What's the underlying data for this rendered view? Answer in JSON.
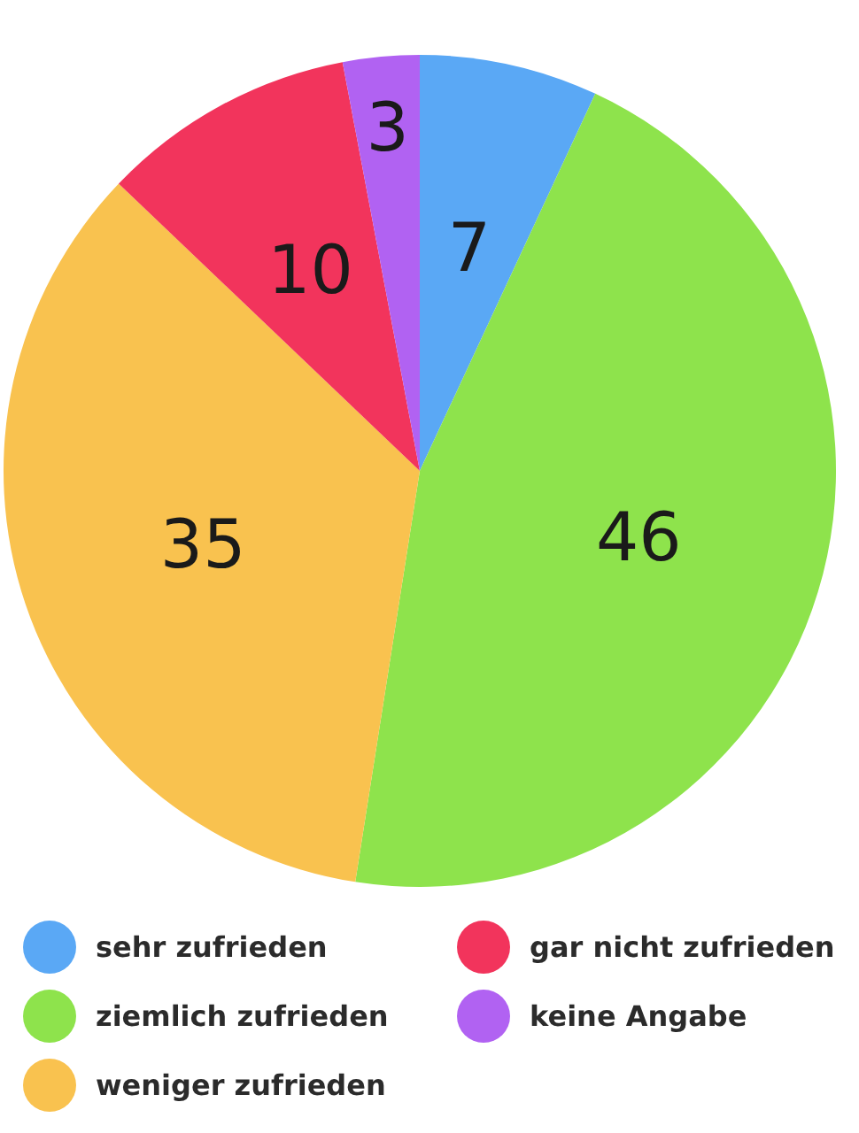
{
  "chart_data": {
    "type": "pie",
    "categories": [
      "sehr zufrieden",
      "ziemlich zufrieden",
      "weniger zufrieden",
      "gar nicht zufrieden",
      "keine Angabe"
    ],
    "values": [
      7,
      46,
      35,
      10,
      3
    ],
    "colors": [
      "#5aa8f5",
      "#8ee34c",
      "#f9c24f",
      "#f2345c",
      "#b162f2"
    ],
    "data_labels": true,
    "legend": "bottom"
  }
}
